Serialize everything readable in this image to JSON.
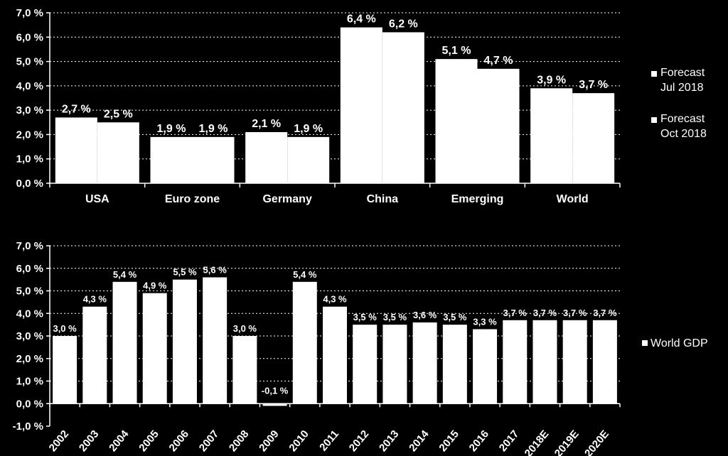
{
  "chart_data": [
    {
      "type": "bar",
      "categories": [
        "USA",
        "Euro zone",
        "Germany",
        "China",
        "Emerging",
        "World"
      ],
      "series": [
        {
          "name": "Forecast Jul 2018",
          "legend_lines": [
            "Forecast",
            "Jul 2018"
          ],
          "values": [
            2.7,
            1.9,
            2.1,
            6.4,
            5.1,
            3.9
          ],
          "labels": [
            "2,7 %",
            "1,9 %",
            "2,1 %",
            "6,4 %",
            "5,1 %",
            "3,9 %"
          ]
        },
        {
          "name": "Forecast Oct 2018",
          "legend_lines": [
            "Forecast",
            "Oct 2018"
          ],
          "values": [
            2.5,
            1.9,
            1.9,
            6.2,
            4.7,
            3.7
          ],
          "labels": [
            "2,5 %",
            "1,9 %",
            "1,9 %",
            "6,2 %",
            "4,7 %",
            "3,7 %"
          ]
        }
      ],
      "yticks": [
        "0,0 %",
        "1,0 %",
        "2,0 %",
        "3,0 %",
        "4,0 %",
        "5,0 %",
        "6,0 %",
        "7,0 %"
      ],
      "ylim": [
        0,
        7
      ],
      "grid": "dotted horizontal",
      "legend_position": "right",
      "colors": {
        "bar": "#ffffff",
        "background": "#000000",
        "grid": "#ffffff"
      }
    },
    {
      "type": "bar",
      "categories": [
        "2002",
        "2003",
        "2004",
        "2005",
        "2006",
        "2007",
        "2008",
        "2009",
        "2010",
        "2011",
        "2012",
        "2013",
        "2014",
        "2015",
        "2016",
        "2017",
        "2018E",
        "2019E",
        "2020E"
      ],
      "series": [
        {
          "name": "World GDP",
          "values": [
            3.0,
            4.3,
            5.4,
            4.9,
            5.5,
            5.6,
            3.0,
            -0.1,
            5.4,
            4.3,
            3.5,
            3.5,
            3.6,
            3.5,
            3.3,
            3.7,
            3.7,
            3.7,
            3.7
          ],
          "labels": [
            "3,0 %",
            "4,3 %",
            "5,4 %",
            "4,9 %",
            "5,5 %",
            "5,6 %",
            "3,0 %",
            "-0,1 %",
            "5,4 %",
            "4,3 %",
            "3,5 %",
            "3,5 %",
            "3,6 %",
            "3,5 %",
            "3,3 %",
            "3,7 %",
            "3,7 %",
            "3,7 %",
            "3,7 %"
          ]
        }
      ],
      "yticks": [
        "-1,0 %",
        "0,0 %",
        "1,0 %",
        "2,0 %",
        "3,0 %",
        "4,0 %",
        "5,0 %",
        "6,0 %",
        "7,0 %"
      ],
      "ylim": [
        -1,
        7
      ],
      "grid": "dotted horizontal",
      "legend_position": "right",
      "colors": {
        "bar": "#ffffff",
        "background": "#000000",
        "grid": "#ffffff"
      }
    }
  ]
}
